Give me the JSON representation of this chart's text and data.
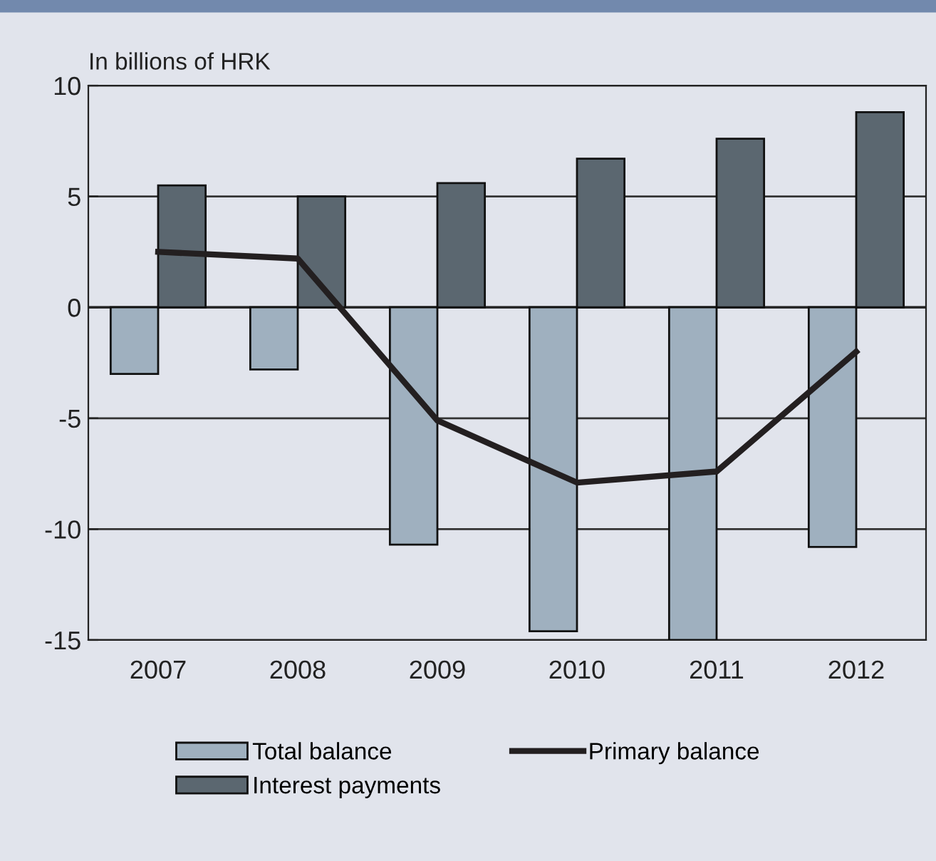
{
  "chart_data": {
    "type": "bar",
    "ylabel": "In billions of HRK",
    "categories": [
      "2007",
      "2008",
      "2009",
      "2010",
      "2011",
      "2012"
    ],
    "series": [
      {
        "name": "Total balance",
        "color": "#9fb0bf",
        "values": [
          -3.0,
          -2.8,
          -10.7,
          -14.6,
          -15.0,
          -10.8
        ]
      },
      {
        "name": "Interest payments",
        "color": "#5b6770",
        "values": [
          5.5,
          5.0,
          5.6,
          6.7,
          7.6,
          8.8
        ]
      },
      {
        "name": "Primary balance",
        "type": "line",
        "color": "#231f20",
        "values": [
          2.5,
          2.2,
          -5.1,
          -7.9,
          -7.4,
          -2.0
        ]
      }
    ],
    "ylim": [
      -15,
      10
    ],
    "yticks": [
      -15,
      -10,
      -5,
      0,
      5,
      10
    ],
    "grid": "y",
    "legend": "bottom"
  }
}
